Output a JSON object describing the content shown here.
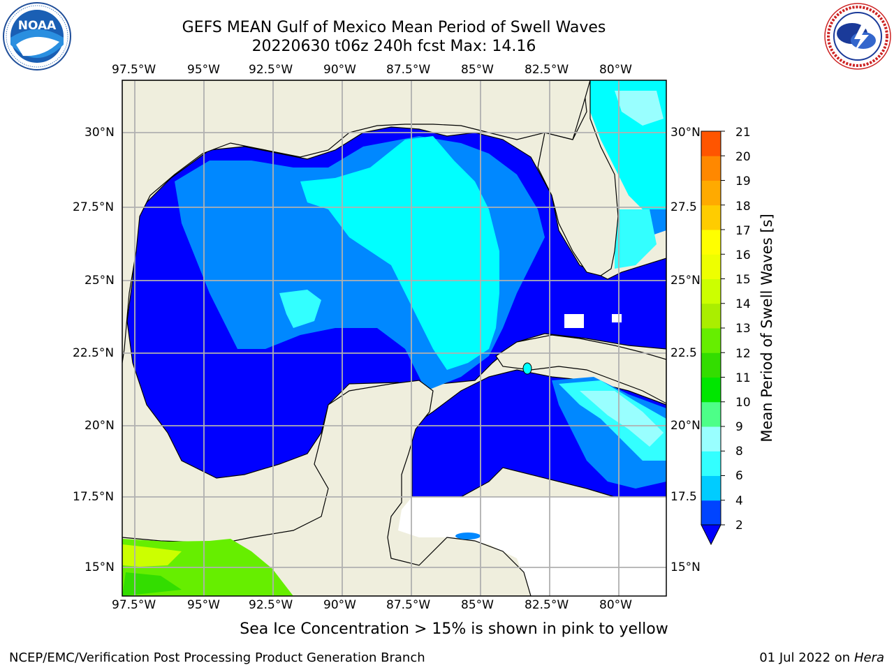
{
  "header": {
    "title_line1": "GEFS MEAN Gulf of Mexico Mean Period of Swell Waves",
    "title_line2": "20220630 t06z 240h fcst   Max: 14.16"
  },
  "logos": {
    "left": {
      "name": "NOAA",
      "ring_text": "NATIONAL OCEANIC AND ATMOSPHERIC ADMINISTRATION · U.S. DEPARTMENT OF COMMERCE"
    },
    "right": {
      "name": "NATIONAL WEATHER SERVICE"
    }
  },
  "map": {
    "lon_labels": [
      "97.5°W",
      "95°W",
      "92.5°W",
      "90°W",
      "87.5°W",
      "85°W",
      "82.5°W",
      "80°W"
    ],
    "lat_labels_left": [
      "30°N",
      "27.5°N",
      "25°N",
      "22.5°N",
      "20°N",
      "17.5°N",
      "15°N"
    ],
    "lat_labels_right": [
      "30°N",
      "27.5",
      "25°N",
      "22.5",
      "20°N",
      "17.5",
      "15°N"
    ],
    "land_color": "#efeedd",
    "grid_color": "#b0b0b0"
  },
  "colorbar": {
    "title": "Mean Period of Swell Waves [s]",
    "tick_labels": [
      "2",
      "4",
      "6",
      "8",
      "9",
      "10",
      "11",
      "12",
      "13",
      "14",
      "15",
      "16",
      "17",
      "18",
      "19",
      "20",
      "21"
    ],
    "colors": [
      "#0044ff",
      "#00ccff",
      "#33ffff",
      "#99ffff",
      "#4dff88",
      "#00e600",
      "#33dd00",
      "#66ee00",
      "#aaee00",
      "#ccff00",
      "#eeff00",
      "#ffff00",
      "#ffcc00",
      "#ffaa00",
      "#ff8800",
      "#ff5500",
      "#ff2200",
      "#ff0000"
    ],
    "extend_color": "#0000ff"
  },
  "note": "Sea Ice Concentration > 15% is shown in pink to yellow",
  "footer": {
    "left": "NCEP/EMC/Verification Post Processing Product Generation Branch",
    "right_date": "01 Jul 2022 on",
    "right_host": "Hera"
  }
}
